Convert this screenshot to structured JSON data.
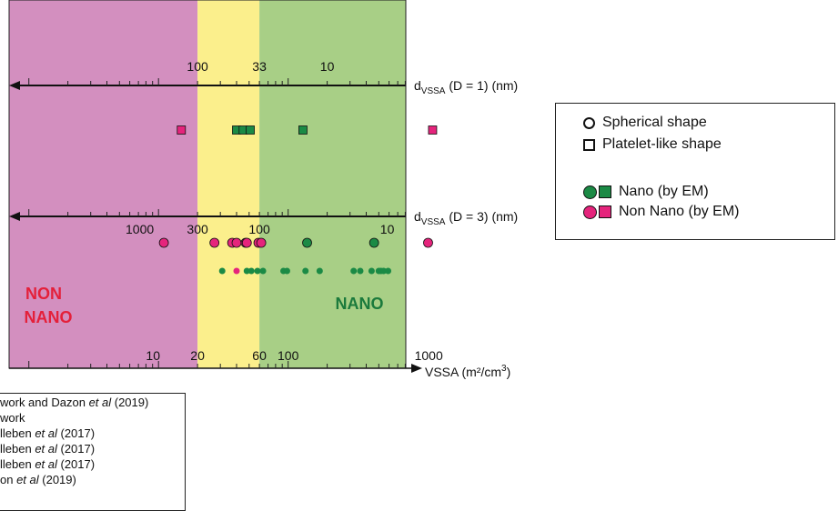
{
  "colors": {
    "non_nano_zone": "#d38fbf",
    "intermediate_zone": "#fbef8c",
    "nano_zone": "#a8cf86",
    "nano": "#1b8a45",
    "non_nano": "#e5247c",
    "non_nano_label": "#e4203a",
    "nano_label": "#1b7a3c"
  },
  "chart_data": {
    "type": "scatter",
    "x_scale": "log",
    "xlim": [
      4,
      1400
    ],
    "zones": [
      {
        "label": "NON NANO",
        "x_range": [
          4,
          20
        ],
        "color": "#d38fbf"
      },
      {
        "label": "",
        "x_range": [
          20,
          60
        ],
        "color": "#fbef8c"
      },
      {
        "label": "NANO",
        "x_range": [
          60,
          1400
        ],
        "color": "#a8cf86"
      }
    ],
    "bottom_axis": {
      "label": "VSSA (m²/cm³)",
      "tick_labels": [
        "10",
        "20",
        "60",
        "100",
        "1000"
      ],
      "tick_values": [
        10,
        20,
        60,
        100,
        1000
      ]
    },
    "axis_d1": {
      "label_main": "d",
      "label_sub": "VSSA",
      "label_rest": " (D = 1) (nm)",
      "tick_labels": [
        "100",
        "33",
        "10"
      ],
      "tick_values": [
        20,
        60,
        200
      ]
    },
    "axis_d3": {
      "label_main": "d",
      "label_sub": "VSSA",
      "label_rest": " (D = 3) (nm)",
      "tick_labels": [
        "1000",
        "300",
        "100",
        "10"
      ],
      "tick_values": [
        6,
        20,
        60,
        600
      ]
    },
    "platelet_points": [
      {
        "x": 15,
        "class": "non_nano"
      },
      {
        "x": 40,
        "class": "nano"
      },
      {
        "x": 45,
        "class": "nano"
      },
      {
        "x": 51,
        "class": "nano"
      },
      {
        "x": 130,
        "class": "nano"
      },
      {
        "x": 1300,
        "class": "non_nano"
      }
    ],
    "sphere_points_em": [
      {
        "x": 11,
        "class": "non_nano"
      },
      {
        "x": 27,
        "class": "non_nano"
      },
      {
        "x": 37,
        "class": "non_nano"
      },
      {
        "x": 40,
        "class": "non_nano"
      },
      {
        "x": 47,
        "class": "non_nano"
      },
      {
        "x": 48,
        "class": "non_nano"
      },
      {
        "x": 59,
        "class": "non_nano"
      },
      {
        "x": 62,
        "class": "non_nano"
      },
      {
        "x": 140,
        "class": "nano"
      },
      {
        "x": 460,
        "class": "nano"
      },
      {
        "x": 1200,
        "class": "non_nano"
      }
    ],
    "sphere_points_other": [
      {
        "x": 31,
        "class": "nano"
      },
      {
        "x": 40,
        "class": "non_nano"
      },
      {
        "x": 48,
        "class": "nano"
      },
      {
        "x": 52,
        "class": "nano"
      },
      {
        "x": 58,
        "class": "nano"
      },
      {
        "x": 64,
        "class": "nano"
      },
      {
        "x": 92,
        "class": "nano"
      },
      {
        "x": 98,
        "class": "nano"
      },
      {
        "x": 136,
        "class": "nano"
      },
      {
        "x": 175,
        "class": "nano"
      },
      {
        "x": 320,
        "class": "nano"
      },
      {
        "x": 360,
        "class": "nano"
      },
      {
        "x": 440,
        "class": "nano"
      },
      {
        "x": 500,
        "class": "nano"
      },
      {
        "x": 520,
        "class": "nano"
      },
      {
        "x": 545,
        "class": "nano"
      },
      {
        "x": 590,
        "class": "nano"
      }
    ]
  },
  "legend": {
    "spherical": "Spherical shape",
    "platelet": "Platelet-like shape",
    "nano": "Nano (by EM)",
    "non_nano": "Non Nano (by EM)"
  },
  "references": [
    {
      "pre": "work and Dazon ",
      "em": "et al",
      "post": " (2019)"
    },
    {
      "pre": "work",
      "em": "",
      "post": ""
    },
    {
      "pre": "lleben ",
      "em": "et al",
      "post": " (2017)"
    },
    {
      "pre": "lleben ",
      "em": "et al",
      "post": " (2017)"
    },
    {
      "pre": "lleben ",
      "em": "et al",
      "post": " (2017)"
    },
    {
      "pre": "on ",
      "em": "et al",
      "post": " (2019)"
    }
  ]
}
